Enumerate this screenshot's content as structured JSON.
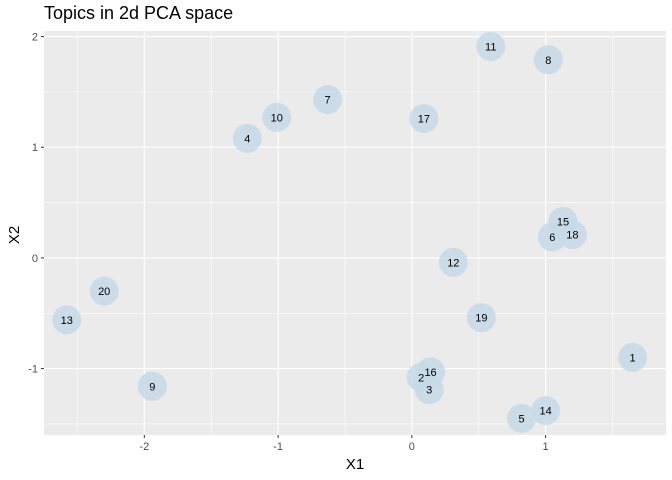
{
  "chart_data": {
    "type": "scatter",
    "title": "Topics in 2d PCA space",
    "xlabel": "X1",
    "ylabel": "X2",
    "xlim": [
      -2.75,
      1.9
    ],
    "ylim": [
      -1.6,
      2.05
    ],
    "xticks": [
      -2,
      -1,
      0,
      1
    ],
    "yticks": [
      -1,
      0,
      1,
      2
    ],
    "grid": true,
    "colors": {
      "panel_background": "#ebebeb",
      "grid_major": "#ffffff",
      "point_fill": "#c6d9e7",
      "point_opacity": 0.85
    },
    "points": [
      {
        "label": "1",
        "x": 1.65,
        "y": -0.9
      },
      {
        "label": "2",
        "x": 0.07,
        "y": -1.08
      },
      {
        "label": "3",
        "x": 0.13,
        "y": -1.19
      },
      {
        "label": "4",
        "x": -1.23,
        "y": 1.08
      },
      {
        "label": "5",
        "x": 0.82,
        "y": -1.45
      },
      {
        "label": "6",
        "x": 1.05,
        "y": 0.19
      },
      {
        "label": "7",
        "x": -0.63,
        "y": 1.43
      },
      {
        "label": "8",
        "x": 1.02,
        "y": 1.79
      },
      {
        "label": "9",
        "x": -1.94,
        "y": -1.16
      },
      {
        "label": "10",
        "x": -1.01,
        "y": 1.27
      },
      {
        "label": "11",
        "x": 0.59,
        "y": 1.91
      },
      {
        "label": "12",
        "x": 0.31,
        "y": -0.04
      },
      {
        "label": "13",
        "x": -2.58,
        "y": -0.56
      },
      {
        "label": "14",
        "x": 1.0,
        "y": -1.38
      },
      {
        "label": "15",
        "x": 1.13,
        "y": 0.33
      },
      {
        "label": "16",
        "x": 0.14,
        "y": -1.03
      },
      {
        "label": "17",
        "x": 0.09,
        "y": 1.26
      },
      {
        "label": "18",
        "x": 1.2,
        "y": 0.21
      },
      {
        "label": "19",
        "x": 0.52,
        "y": -0.54
      },
      {
        "label": "20",
        "x": -2.3,
        "y": -0.3
      }
    ]
  }
}
